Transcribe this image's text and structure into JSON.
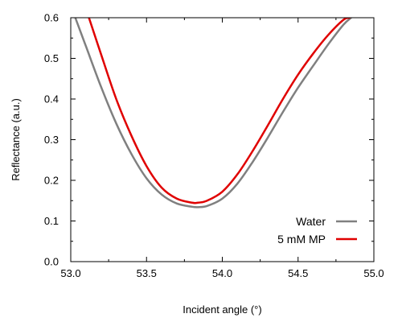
{
  "chart_data": {
    "type": "line",
    "xlabel": "Incident angle (°)",
    "ylabel": "Reflectance (a.u.)",
    "xlim": [
      53.0,
      55.0
    ],
    "ylim": [
      0.0,
      0.6
    ],
    "xticks": [
      53.0,
      53.5,
      54.0,
      54.5,
      55.0
    ],
    "xtick_labels": [
      "53.0",
      "53.5",
      "54.0",
      "54.5",
      "55.0"
    ],
    "yticks": [
      0.0,
      0.1,
      0.2,
      0.3,
      0.4,
      0.5,
      0.6
    ],
    "ytick_labels": [
      "0.0",
      "0.1",
      "0.2",
      "0.3",
      "0.4",
      "0.5",
      "0.6"
    ],
    "grid": false,
    "legend_position": "bottom-right",
    "series": [
      {
        "name": "Water",
        "color": "#808080",
        "x": [
          53.03,
          53.1,
          53.2,
          53.3,
          53.4,
          53.5,
          53.6,
          53.7,
          53.8,
          53.84,
          53.9,
          54.0,
          54.1,
          54.2,
          54.3,
          54.4,
          54.5,
          54.6,
          54.7,
          54.8,
          54.85
        ],
        "y": [
          0.6,
          0.53,
          0.43,
          0.34,
          0.265,
          0.205,
          0.165,
          0.143,
          0.135,
          0.134,
          0.137,
          0.155,
          0.192,
          0.245,
          0.305,
          0.368,
          0.428,
          0.482,
          0.535,
          0.583,
          0.6
        ]
      },
      {
        "name": "5 mM MP",
        "color": "#e00000",
        "x": [
          53.12,
          53.2,
          53.3,
          53.4,
          53.5,
          53.6,
          53.7,
          53.8,
          53.84,
          53.9,
          54.0,
          54.1,
          54.2,
          54.3,
          54.4,
          54.5,
          54.6,
          54.7,
          54.8,
          54.84
        ],
        "y": [
          0.6,
          0.51,
          0.4,
          0.31,
          0.235,
          0.182,
          0.155,
          0.145,
          0.145,
          0.15,
          0.172,
          0.215,
          0.272,
          0.335,
          0.4,
          0.46,
          0.512,
          0.558,
          0.595,
          0.6
        ]
      }
    ]
  }
}
